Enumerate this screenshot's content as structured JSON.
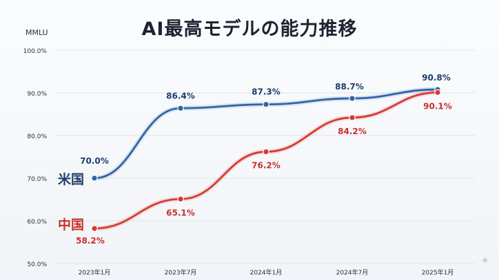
{
  "chart_data": {
    "type": "line",
    "title": "AI最高モデルの能力推移",
    "ylabel": "MMLU",
    "xlabel": "",
    "categories": [
      "2023年1月",
      "2023年7月",
      "2024年1月",
      "2024年7月",
      "2025年1月"
    ],
    "ylim": [
      50,
      100
    ],
    "yticks": [
      "50.0%",
      "60.0%",
      "70.0%",
      "80.0%",
      "90.0%",
      "100.0%"
    ],
    "ytick_values": [
      50,
      60,
      70,
      80,
      90,
      100
    ],
    "grid": true,
    "legend": "inline",
    "series": [
      {
        "name": "米国",
        "values": [
          70.0,
          86.4,
          87.3,
          88.7,
          90.8
        ],
        "labels": [
          "70.0%",
          "86.4%",
          "87.3%",
          "88.7%",
          "90.8%"
        ],
        "color": "#2f64a8"
      },
      {
        "name": "中国",
        "values": [
          58.2,
          65.1,
          76.2,
          84.2,
          90.1
        ],
        "labels": [
          "58.2%",
          "65.1%",
          "76.2%",
          "84.2%",
          "90.1%"
        ],
        "color": "#d63a32"
      }
    ]
  },
  "colors": {
    "us_line": "#2f64a8",
    "us_label": "#1f3d6b",
    "cn_line": "#d63a32",
    "cn_label": "#c8312b",
    "grid": "#e1e5ea",
    "axis_text": "#2a2f38"
  },
  "icons": {
    "corner": "sparkle-icon"
  }
}
